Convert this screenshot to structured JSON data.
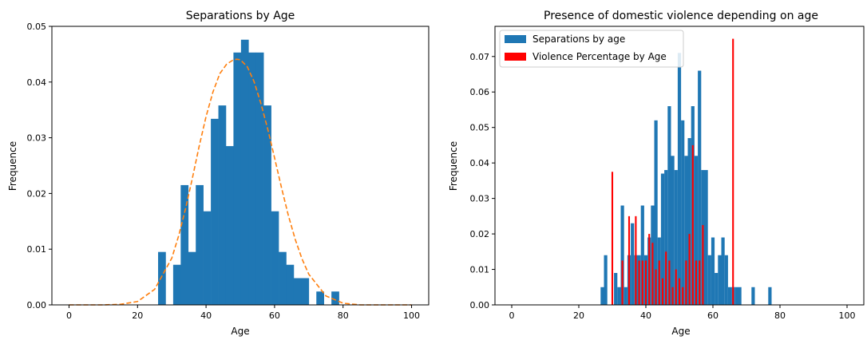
{
  "chart_data": [
    {
      "type": "bar",
      "title": "Separations by Age",
      "xlabel": "Age",
      "ylabel": "Frequence",
      "xlim": [
        -5,
        105
      ],
      "ylim": [
        0,
        0.05
      ],
      "xticks": [
        0,
        20,
        40,
        60,
        80,
        100
      ],
      "yticks": [
        0.0,
        0.01,
        0.02,
        0.03,
        0.04,
        0.05
      ],
      "ytick_labels": [
        "0.00",
        "0.01",
        "0.02",
        "0.03",
        "0.04",
        "0.05"
      ],
      "grid": false,
      "legend": null,
      "color": "#1f77b4",
      "curve_color": "#ff7f0e",
      "histogram": {
        "bin_edges": [
          26,
          28.2,
          30.4,
          32.6,
          34.8,
          37.0,
          39.2,
          41.4,
          43.6,
          45.8,
          48.0,
          50.2,
          52.4,
          54.6,
          56.8,
          59.0,
          61.2,
          63.4,
          65.6,
          67.8,
          70.0,
          72.2,
          74.4,
          76.6,
          78.8
        ],
        "values": [
          0.0095,
          0.0,
          0.0072,
          0.0215,
          0.0095,
          0.0215,
          0.0168,
          0.0334,
          0.0358,
          0.0285,
          0.0453,
          0.0476,
          0.0453,
          0.0453,
          0.0358,
          0.0168,
          0.0095,
          0.0072,
          0.0048,
          0.0048,
          0.0,
          0.0024,
          0.0,
          0.0024
        ]
      },
      "fit_curve": {
        "style": "dashed",
        "x": [
          0,
          5,
          10,
          15,
          20,
          25,
          30,
          32,
          34,
          36,
          38,
          40,
          42,
          44,
          46,
          48,
          49,
          50,
          52,
          54,
          56,
          58,
          60,
          62,
          64,
          66,
          68,
          70,
          75,
          80,
          85,
          90,
          95,
          100
        ],
        "y": [
          0.0,
          0.0,
          0.0,
          0.0001,
          0.0006,
          0.0028,
          0.0084,
          0.0124,
          0.0172,
          0.0227,
          0.0285,
          0.0338,
          0.0382,
          0.0415,
          0.0432,
          0.044,
          0.0441,
          0.044,
          0.0428,
          0.0401,
          0.0362,
          0.0316,
          0.0264,
          0.0211,
          0.0161,
          0.0118,
          0.0083,
          0.0055,
          0.0016,
          0.0003,
          0.0,
          0.0,
          0.0,
          0.0
        ]
      }
    },
    {
      "type": "bar",
      "title": "Presence of domestic violence depending on age",
      "xlabel": "Age",
      "ylabel": "Frequence",
      "xlim": [
        -5,
        105
      ],
      "ylim": [
        0,
        0.0785
      ],
      "xticks": [
        0,
        20,
        40,
        60,
        80,
        100
      ],
      "yticks": [
        0.0,
        0.01,
        0.02,
        0.03,
        0.04,
        0.05,
        0.06,
        0.07
      ],
      "ytick_labels": [
        "0.00",
        "0.01",
        "0.02",
        "0.03",
        "0.04",
        "0.05",
        "0.06",
        "0.07"
      ],
      "grid": false,
      "legend": "top-left",
      "series": [
        {
          "name": "Separations by age",
          "color": "#1f77b4",
          "bar_width": 1.0,
          "x": [
            27,
            28,
            31,
            32,
            33,
            34,
            35,
            36,
            37,
            38,
            39,
            40,
            41,
            42,
            43,
            44,
            45,
            46,
            47,
            48,
            49,
            50,
            51,
            52,
            53,
            54,
            55,
            56,
            57,
            58,
            59,
            60,
            61,
            62,
            63,
            64,
            65,
            66,
            67,
            68,
            72,
            77
          ],
          "values": [
            0.005,
            0.014,
            0.009,
            0.005,
            0.028,
            0.005,
            0.014,
            0.023,
            0.014,
            0.014,
            0.028,
            0.014,
            0.019,
            0.028,
            0.052,
            0.019,
            0.037,
            0.038,
            0.056,
            0.042,
            0.038,
            0.071,
            0.052,
            0.042,
            0.047,
            0.056,
            0.042,
            0.066,
            0.038,
            0.038,
            0.014,
            0.019,
            0.009,
            0.014,
            0.019,
            0.014,
            0.005,
            0.005,
            0.005,
            0.005,
            0.005,
            0.005
          ]
        },
        {
          "name": "Violence Percentage by Age",
          "color": "#ff0000",
          "bar_width": 0.5,
          "x": [
            30,
            33,
            35,
            37,
            38,
            39,
            40,
            41,
            42,
            43,
            44,
            45,
            46,
            47,
            48,
            49,
            50,
            51,
            52,
            53,
            54,
            55,
            56,
            57,
            66
          ],
          "values": [
            0.0375,
            0.0125,
            0.025,
            0.025,
            0.0125,
            0.0125,
            0.0125,
            0.02,
            0.0175,
            0.01,
            0.0125,
            0.0075,
            0.015,
            0.0125,
            0.005,
            0.01,
            0.0075,
            0.005,
            0.0125,
            0.02,
            0.045,
            0.0125,
            0.0125,
            0.0225,
            0.075
          ]
        }
      ]
    }
  ]
}
